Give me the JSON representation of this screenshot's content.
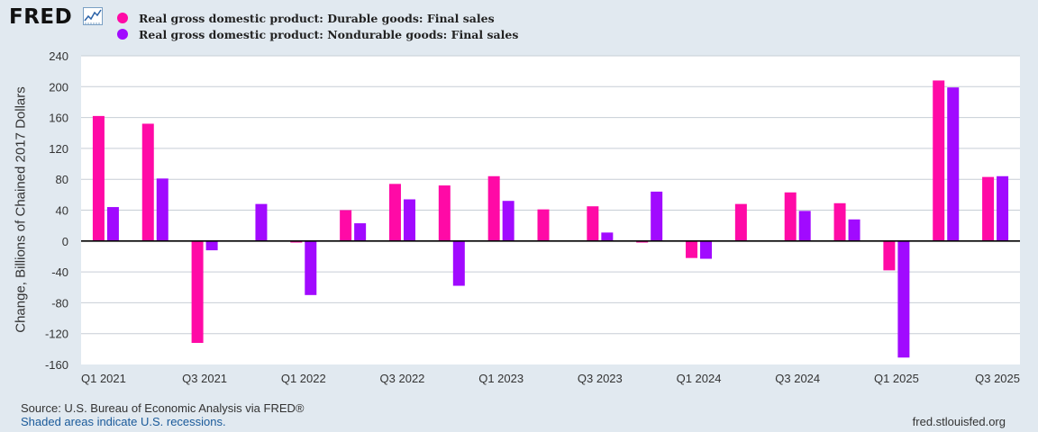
{
  "header": {
    "logo_text": "FRED"
  },
  "chart_data": {
    "type": "bar",
    "ylabel": "Change, Billions of Chained 2017 Dollars",
    "xlabel": "",
    "ylim": [
      -160,
      240
    ],
    "yticks": [
      240,
      200,
      160,
      120,
      80,
      40,
      0,
      -40,
      -80,
      -120,
      -160
    ],
    "xtick_labels": [
      "Q1 2021",
      "Q3 2021",
      "Q1 2022",
      "Q3 2022",
      "Q1 2023",
      "Q3 2023",
      "Q1 2024",
      "Q3 2024",
      "Q1 2025",
      "Q3 2025"
    ],
    "categories": [
      "Q1 2021",
      "Q2 2021",
      "Q3 2021",
      "Q4 2021",
      "Q1 2022",
      "Q2 2022",
      "Q3 2022",
      "Q4 2022",
      "Q1 2023",
      "Q2 2023",
      "Q3 2023",
      "Q4 2023",
      "Q1 2024",
      "Q2 2024",
      "Q3 2024",
      "Q4 2024",
      "Q1 2025",
      "Q2 2025",
      "Q3 2025"
    ],
    "series": [
      {
        "name": "Real gross domestic product: Durable goods: Final sales",
        "color": "#ff0aa6",
        "values": [
          162,
          152,
          -132,
          0,
          -2,
          40,
          74,
          72,
          84,
          41,
          45,
          -2,
          -22,
          48,
          63,
          49,
          -38,
          208,
          83
        ]
      },
      {
        "name": "Real gross domestic product: Nondurable goods: Final sales",
        "color": "#a10aff",
        "values": [
          44,
          81,
          -12,
          48,
          -70,
          23,
          54,
          -58,
          52,
          0,
          11,
          64,
          -23,
          0,
          39,
          28,
          -151,
          199,
          84
        ]
      }
    ],
    "grid": true,
    "zero_line": true,
    "legend_position": "top-left"
  },
  "footer": {
    "source": "Source: U.S. Bureau of Economic Analysis via FRED®",
    "recession_note": "Shaded areas indicate U.S. recessions.",
    "site": "fred.stlouisfed.org"
  },
  "colors": {
    "background": "#e1e9f0",
    "plot_background": "#ffffff",
    "grid": "#c7ced6",
    "zero_line": "#000000"
  }
}
